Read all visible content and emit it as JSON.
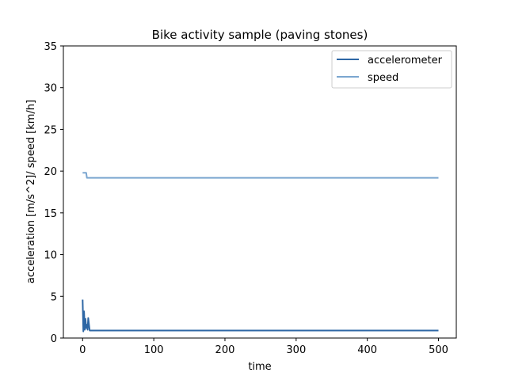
{
  "chart_data": {
    "type": "line",
    "title": "Bike activity sample (paving stones)",
    "xlabel": "time",
    "ylabel": "acceleration [m/s^2]/ speed [km/h]",
    "xlim": [
      -27,
      525
    ],
    "ylim": [
      0,
      35
    ],
    "xticks": [
      0,
      100,
      200,
      300,
      400,
      500
    ],
    "yticks": [
      0,
      5,
      10,
      15,
      20,
      25,
      30,
      35
    ],
    "grid": false,
    "legend_position": "top-right",
    "series": [
      {
        "name": "accelerometer",
        "color": "#2e67a5",
        "x": [
          0,
          1,
          2,
          3,
          4,
          5,
          6,
          7,
          8,
          10,
          500
        ],
        "y": [
          4.6,
          0.8,
          3.2,
          1.0,
          2.3,
          1.2,
          1.6,
          1.0,
          2.4,
          0.9,
          0.9
        ]
      },
      {
        "name": "speed",
        "color": "#7ba6d0",
        "x": [
          0,
          5,
          6,
          500
        ],
        "y": [
          19.8,
          19.8,
          19.2,
          19.2
        ]
      }
    ]
  }
}
